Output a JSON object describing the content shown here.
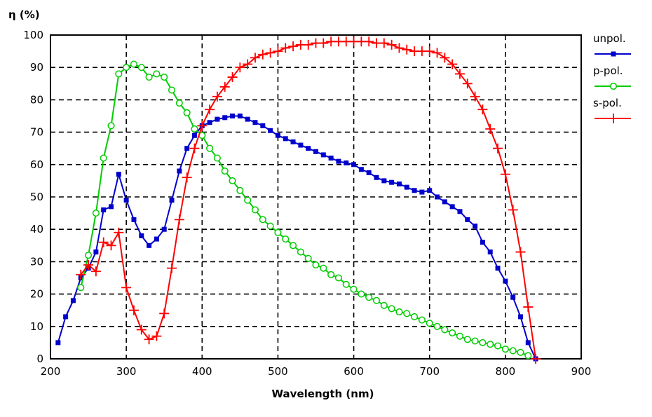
{
  "chart_data": {
    "type": "line",
    "ylabel": "η (%)",
    "xlabel": "Wavelength (nm)",
    "xlim": [
      200,
      900
    ],
    "ylim": [
      0,
      100
    ],
    "xticks": [
      200,
      300,
      400,
      500,
      600,
      700,
      800,
      900
    ],
    "yticks": [
      0,
      10,
      20,
      30,
      40,
      50,
      60,
      70,
      80,
      90,
      100
    ],
    "grid": true,
    "legend_position": "right",
    "series": [
      {
        "name": "unpol.",
        "color": "#0000cc",
        "marker": "square",
        "x": [
          210,
          220,
          230,
          240,
          250,
          260,
          270,
          280,
          290,
          300,
          310,
          320,
          330,
          340,
          350,
          360,
          370,
          380,
          390,
          400,
          410,
          420,
          430,
          440,
          450,
          460,
          470,
          480,
          490,
          500,
          510,
          520,
          530,
          540,
          550,
          560,
          570,
          580,
          590,
          600,
          610,
          620,
          630,
          640,
          650,
          660,
          670,
          680,
          690,
          700,
          710,
          720,
          730,
          740,
          750,
          760,
          770,
          780,
          790,
          800,
          810,
          820,
          830,
          840
        ],
        "y": [
          5,
          13,
          18,
          25,
          28,
          33,
          46,
          47,
          57,
          49,
          43,
          38,
          35,
          37,
          40,
          49,
          58,
          65,
          69,
          72,
          73,
          74,
          74.5,
          75,
          75,
          74,
          73,
          72,
          70.5,
          69,
          68,
          67,
          66,
          65,
          64,
          63,
          62,
          61,
          60.5,
          60,
          58.5,
          57.5,
          56,
          55,
          54.5,
          54,
          53,
          52,
          51.5,
          52,
          50,
          48.5,
          47,
          45.5,
          43,
          41,
          36,
          33,
          28,
          24,
          19,
          13,
          5,
          0
        ]
      },
      {
        "name": "p-pol.",
        "color": "#00cc00",
        "marker": "circle",
        "x": [
          240,
          250,
          260,
          270,
          280,
          290,
          300,
          310,
          320,
          330,
          340,
          350,
          360,
          370,
          380,
          390,
          400,
          410,
          420,
          430,
          440,
          450,
          460,
          470,
          480,
          490,
          500,
          510,
          520,
          530,
          540,
          550,
          560,
          570,
          580,
          590,
          600,
          610,
          620,
          630,
          640,
          650,
          660,
          670,
          680,
          690,
          700,
          710,
          720,
          730,
          740,
          750,
          760,
          770,
          780,
          790,
          800,
          810,
          820,
          830
        ],
        "y": [
          22,
          32,
          45,
          62,
          72,
          88,
          90,
          91,
          90,
          87,
          88,
          87,
          83,
          79,
          76,
          71,
          69,
          65,
          62,
          58,
          55,
          52,
          49,
          46,
          43,
          41,
          39,
          37,
          35,
          33,
          31,
          29,
          28,
          26,
          25,
          23,
          21.5,
          20,
          19,
          18,
          16.5,
          15.5,
          14.5,
          14,
          13,
          12,
          11,
          10,
          9,
          8,
          7,
          6,
          5.5,
          5,
          4.5,
          4,
          3,
          2.5,
          2,
          1
        ]
      },
      {
        "name": "s-pol.",
        "color": "#ff0000",
        "marker": "plus",
        "x": [
          240,
          250,
          260,
          270,
          280,
          290,
          300,
          310,
          320,
          330,
          340,
          350,
          360,
          370,
          380,
          390,
          400,
          410,
          420,
          430,
          440,
          450,
          460,
          470,
          480,
          490,
          500,
          510,
          520,
          530,
          540,
          550,
          560,
          570,
          580,
          590,
          600,
          610,
          620,
          630,
          640,
          650,
          660,
          670,
          680,
          690,
          700,
          710,
          720,
          730,
          740,
          750,
          760,
          770,
          780,
          790,
          800,
          810,
          820,
          830,
          840
        ],
        "y": [
          26,
          29,
          27,
          36,
          35,
          39,
          22,
          15,
          9,
          6,
          7,
          14,
          28,
          43,
          56,
          65,
          72,
          77,
          81,
          84,
          87,
          90,
          91,
          93,
          94,
          94.5,
          95,
          96,
          96.5,
          97,
          97,
          97.5,
          97.5,
          98,
          98,
          98,
          98,
          98,
          98,
          97.5,
          97.5,
          97,
          96,
          95.5,
          95,
          95,
          95,
          94.5,
          93,
          91,
          88,
          85,
          81,
          77,
          71,
          65,
          57,
          46,
          33,
          16,
          0
        ]
      }
    ]
  }
}
